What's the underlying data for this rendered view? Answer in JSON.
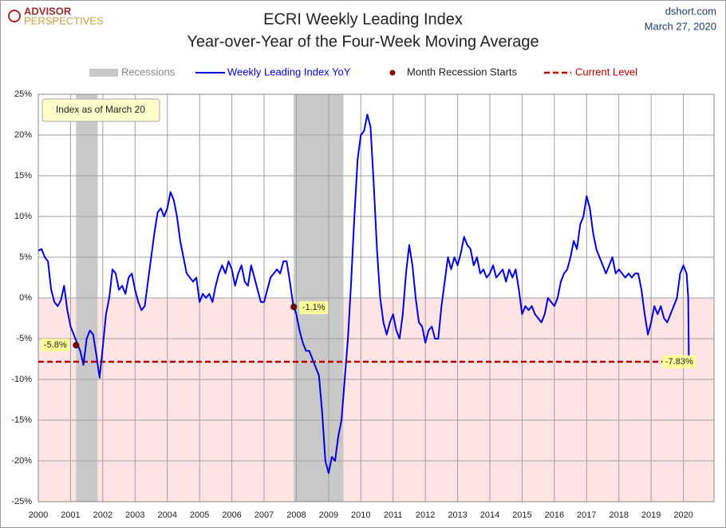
{
  "chart_data": {
    "type": "line",
    "title": "ECRI Weekly Leading Index",
    "subtitle": "Year-over-Year of the Four-Week Moving Average",
    "logo": [
      "ADVISOR",
      "PERSPECTIVES"
    ],
    "source": "dshort.com",
    "date": "March 27, 2020",
    "annotation": "Index as of March 20",
    "negative_fill": "#ffe4e6",
    "grid": true,
    "xlim": [
      2000,
      2020.95
    ],
    "xticks": [
      2000,
      2001,
      2002,
      2003,
      2004,
      2005,
      2006,
      2007,
      2008,
      2009,
      2010,
      2011,
      2012,
      2013,
      2014,
      2015,
      2016,
      2017,
      2018,
      2019,
      2020
    ],
    "ylim": [
      -25,
      25
    ],
    "yticks": [
      {
        "value": 25,
        "label": "25%"
      },
      {
        "value": 20,
        "label": "20%"
      },
      {
        "value": 15,
        "label": "15%"
      },
      {
        "value": 10,
        "label": "10%"
      },
      {
        "value": 5,
        "label": "5%"
      },
      {
        "value": 0,
        "label": "0%"
      },
      {
        "value": -5,
        "label": "-5%"
      },
      {
        "value": -10,
        "label": "-10%"
      },
      {
        "value": -15,
        "label": "-15%"
      },
      {
        "value": -20,
        "label": "-20%"
      },
      {
        "value": -25,
        "label": "-25%"
      }
    ],
    "recessions": {
      "name": "Recessions",
      "color": "#c8c8c8",
      "ranges": [
        [
          2001.17,
          2001.84
        ],
        [
          2007.92,
          2009.46
        ]
      ]
    },
    "x": [
      2000,
      2000.1,
      2000.2,
      2000.3,
      2000.4,
      2000.5,
      2000.6,
      2000.7,
      2000.8,
      2000.9,
      2001,
      2001.1,
      2001.2,
      2001.3,
      2001.4,
      2001.5,
      2001.6,
      2001.7,
      2001.8,
      2001.9,
      2002,
      2002.1,
      2002.2,
      2002.3,
      2002.4,
      2002.5,
      2002.6,
      2002.7,
      2002.8,
      2002.9,
      2003,
      2003.1,
      2003.2,
      2003.3,
      2003.4,
      2003.5,
      2003.6,
      2003.7,
      2003.8,
      2003.9,
      2004,
      2004.1,
      2004.2,
      2004.3,
      2004.4,
      2004.5,
      2004.6,
      2004.7,
      2004.8,
      2004.9,
      2005,
      2005.1,
      2005.2,
      2005.3,
      2005.4,
      2005.5,
      2005.6,
      2005.7,
      2005.8,
      2005.9,
      2006,
      2006.1,
      2006.2,
      2006.3,
      2006.4,
      2006.5,
      2006.6,
      2006.7,
      2006.8,
      2006.9,
      2007,
      2007.1,
      2007.2,
      2007.3,
      2007.4,
      2007.5,
      2007.6,
      2007.7,
      2007.8,
      2007.9,
      2008,
      2008.1,
      2008.2,
      2008.3,
      2008.4,
      2008.5,
      2008.6,
      2008.7,
      2008.8,
      2008.9,
      2009,
      2009.1,
      2009.2,
      2009.3,
      2009.4,
      2009.5,
      2009.6,
      2009.7,
      2009.8,
      2009.9,
      2010,
      2010.1,
      2010.2,
      2010.3,
      2010.4,
      2010.5,
      2010.6,
      2010.7,
      2010.8,
      2010.9,
      2011,
      2011.1,
      2011.2,
      2011.3,
      2011.4,
      2011.5,
      2011.6,
      2011.7,
      2011.8,
      2011.9,
      2012,
      2012.1,
      2012.2,
      2012.3,
      2012.4,
      2012.5,
      2012.6,
      2012.7,
      2012.8,
      2012.9,
      2013,
      2013.1,
      2013.2,
      2013.3,
      2013.4,
      2013.5,
      2013.6,
      2013.7,
      2013.8,
      2013.9,
      2014,
      2014.1,
      2014.2,
      2014.3,
      2014.4,
      2014.5,
      2014.6,
      2014.7,
      2014.8,
      2014.9,
      2015,
      2015.1,
      2015.2,
      2015.3,
      2015.4,
      2015.5,
      2015.6,
      2015.7,
      2015.8,
      2015.9,
      2016,
      2016.1,
      2016.2,
      2016.3,
      2016.4,
      2016.5,
      2016.6,
      2016.7,
      2016.8,
      2016.9,
      2017,
      2017.1,
      2017.2,
      2017.3,
      2017.4,
      2017.5,
      2017.6,
      2017.7,
      2017.8,
      2017.9,
      2018,
      2018.1,
      2018.2,
      2018.3,
      2018.4,
      2018.5,
      2018.6,
      2018.7,
      2018.8,
      2018.9,
      2019,
      2019.1,
      2019.2,
      2019.3,
      2019.4,
      2019.5,
      2019.6,
      2019.7,
      2019.8,
      2019.9,
      2020,
      2020.1,
      2020.15,
      2020.17
    ],
    "series": [
      {
        "name": "Weekly Leading Index YoY",
        "color": "#0000e6",
        "values": [
          5.8,
          6.0,
          5.0,
          4.5,
          1.0,
          -0.5,
          -1.0,
          -0.3,
          1.5,
          -1.5,
          -3.5,
          -4.5,
          -5.5,
          -6.5,
          -8.2,
          -5.0,
          -4.0,
          -4.5,
          -7.0,
          -9.8,
          -6.0,
          -2.0,
          0.0,
          3.5,
          3.0,
          1.0,
          1.5,
          0.5,
          2.5,
          3.0,
          1.0,
          -0.5,
          -1.5,
          -1.0,
          2.0,
          5.0,
          8.0,
          10.5,
          11.0,
          10.0,
          11.0,
          13.0,
          12.0,
          10.0,
          7.0,
          5.0,
          3.0,
          2.5,
          2.0,
          2.5,
          -0.5,
          0.5,
          0.0,
          0.5,
          -0.5,
          1.5,
          3.0,
          4.0,
          3.0,
          4.5,
          3.5,
          1.5,
          3.0,
          4.0,
          2.0,
          1.5,
          4.0,
          2.5,
          1.0,
          -0.5,
          -0.5,
          1.0,
          2.5,
          3.0,
          3.5,
          3.0,
          4.5,
          4.5,
          2.0,
          -0.8,
          -2.0,
          -4.0,
          -5.5,
          -6.5,
          -6.5,
          -7.5,
          -8.5,
          -9.5,
          -14.0,
          -20.0,
          -21.5,
          -19.5,
          -20.0,
          -17.0,
          -15.0,
          -10.0,
          -5.0,
          2.0,
          10.0,
          17.0,
          20.0,
          20.5,
          22.5,
          21.0,
          14.0,
          6.0,
          0.0,
          -3.0,
          -4.5,
          -3.0,
          -2.0,
          -4.0,
          -5.0,
          -2.0,
          3.0,
          6.5,
          4.0,
          0.0,
          -3.0,
          -3.5,
          -5.5,
          -4.0,
          -3.5,
          -5.0,
          -5.0,
          -1.0,
          2.0,
          5.0,
          3.5,
          5.0,
          4.0,
          5.5,
          7.5,
          6.5,
          6.0,
          4.0,
          5.0,
          3.0,
          3.5,
          2.5,
          3.0,
          4.0,
          2.5,
          3.0,
          3.5,
          2.0,
          3.5,
          2.5,
          3.5,
          1.0,
          -2.0,
          -1.0,
          -1.5,
          -1.0,
          -2.0,
          -2.5,
          -3.0,
          -2.0,
          0.0,
          -0.5,
          -1.0,
          0.0,
          2.0,
          3.0,
          3.5,
          5.0,
          7.0,
          6.0,
          9.0,
          10.0,
          12.5,
          11.0,
          8.0,
          6.0,
          5.0,
          4.0,
          3.0,
          4.0,
          5.0,
          3.0,
          3.5,
          3.0,
          2.5,
          3.0,
          2.5,
          3.0,
          3.0,
          1.0,
          -2.0,
          -4.5,
          -3.0,
          -1.0,
          -2.0,
          -1.0,
          -2.5,
          -3.0,
          -2.0,
          -1.0,
          0.0,
          3.0,
          4.0,
          3.0,
          0.0,
          -7.83
        ]
      }
    ],
    "recession_starts": {
      "name": "Month Recession Starts",
      "color": "#8b0000",
      "x": [
        2001.17,
        2007.92
      ],
      "values": [
        -5.8,
        -1.1
      ],
      "value_labels": [
        "-5.8%",
        "-1.1%"
      ]
    },
    "current_level": {
      "name": "Current Level",
      "color": "#c00000",
      "value": -7.83,
      "value_label": "-7.83%"
    }
  }
}
